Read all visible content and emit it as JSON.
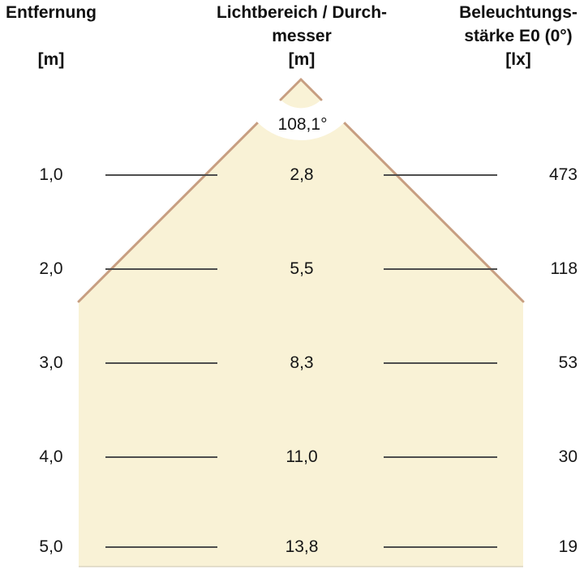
{
  "columns": {
    "left": {
      "title": "Entfernung",
      "unit": "[m]"
    },
    "middle": {
      "title_line1": "Lichtbereich / Durch-",
      "title_line2": "messer",
      "unit": "[m]"
    },
    "right": {
      "title_line1": "Beleuchtungs-",
      "title_line2": "stärke E0 (0°)",
      "unit": "[lx]"
    }
  },
  "beam_angle_label": "108,1°",
  "chart_data": {
    "type": "table",
    "title": "Lichtkegel-Diagramm (beam cone diagram)",
    "beam_angle_deg": 108.1,
    "columns": [
      "Entfernung [m]",
      "Lichtbereich / Durchmesser [m]",
      "Beleuchtungsstärke E0 (0°) [lx]"
    ],
    "rows": [
      {
        "distance_m": "1,0",
        "diameter_m": "2,8",
        "illuminance_lx": "473"
      },
      {
        "distance_m": "2,0",
        "diameter_m": "5,5",
        "illuminance_lx": "118"
      },
      {
        "distance_m": "3,0",
        "diameter_m": "8,3",
        "illuminance_lx": "53"
      },
      {
        "distance_m": "4,0",
        "diameter_m": "11,0",
        "illuminance_lx": "30"
      },
      {
        "distance_m": "5,0",
        "diameter_m": "13,8",
        "illuminance_lx": "19"
      }
    ]
  },
  "colors": {
    "cone_fill": "#F9F2D6",
    "cone_edge": "#C79E81",
    "tick_line": "#4d4d4d",
    "text": "#141414",
    "cutout": "#ffffff",
    "base_line": "#DCD6C0"
  }
}
